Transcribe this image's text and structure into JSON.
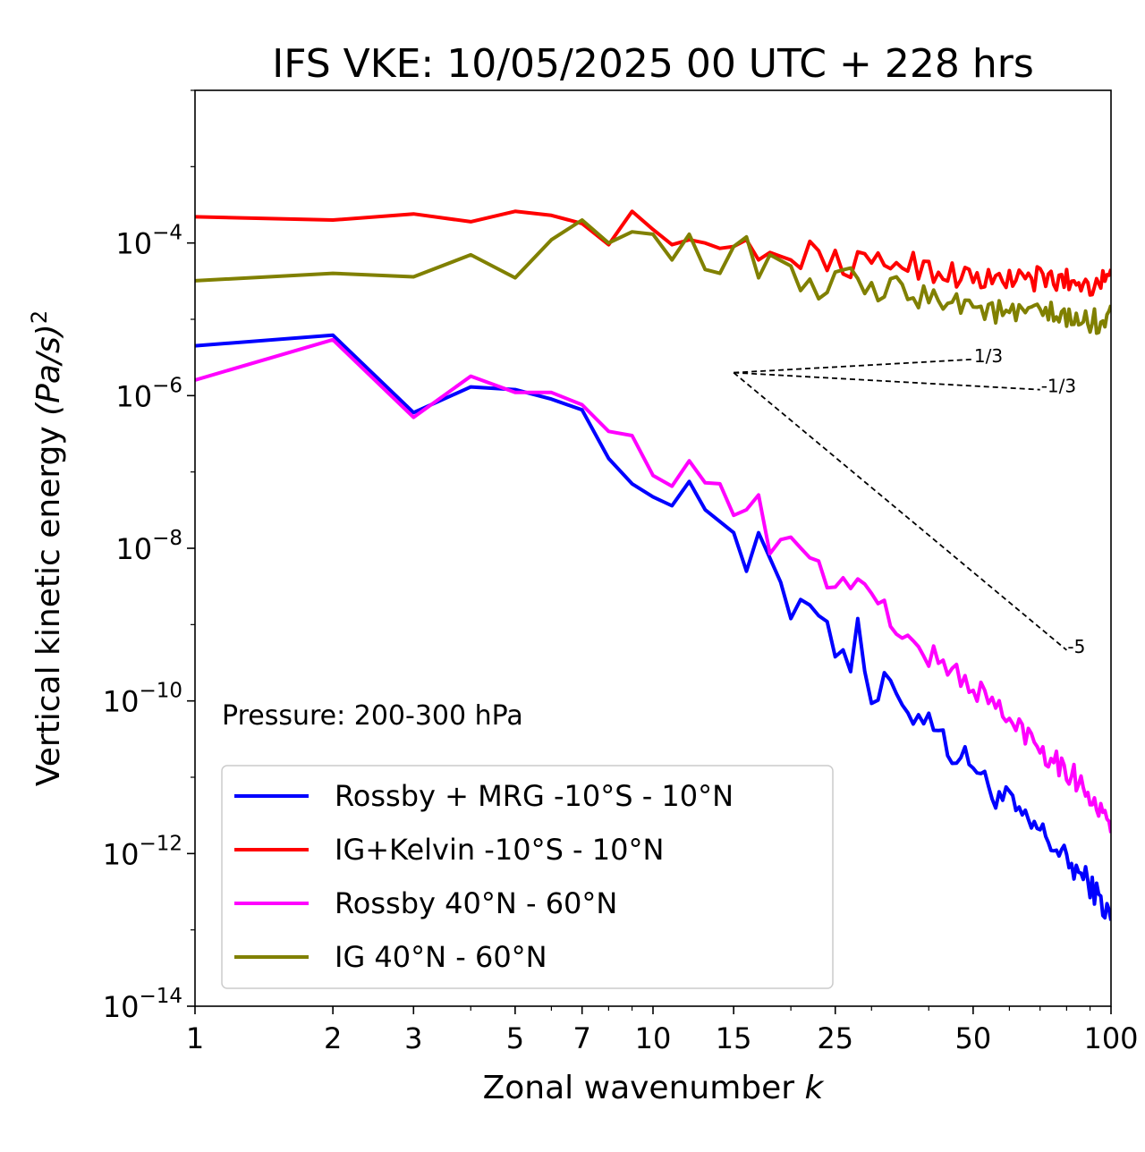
{
  "chart_data": {
    "type": "line",
    "title": "IFS VKE: 10/05/2025 00 UTC + 228 hrs",
    "xlabel": "Zonal wavenumber",
    "xlabel_var": "k",
    "ylabel": "Vertical kinetic energy",
    "ylabel_units": "(Pa/s)",
    "ylabel_exp": "2",
    "annotation": "Pressure: 200-300 hPa",
    "xscale": "log",
    "yscale": "log",
    "xlim": [
      1,
      100
    ],
    "ylim": [
      1e-14,
      0.01
    ],
    "x_ticks": [
      1,
      2,
      3,
      5,
      7,
      10,
      15,
      25,
      50,
      100
    ],
    "y_tick_base": "10",
    "y_ticks": [
      {
        "value": 0.0001,
        "exp": "−4"
      },
      {
        "value": 1e-06,
        "exp": "−6"
      },
      {
        "value": 1e-08,
        "exp": "−8"
      },
      {
        "value": 1e-10,
        "exp": "−10"
      },
      {
        "value": 1e-12,
        "exp": "−12"
      },
      {
        "value": 1e-14,
        "exp": "−14"
      }
    ],
    "legend_position": "lower-left",
    "reference_slopes": [
      {
        "label": "1/3",
        "slope": 0.3333,
        "x_start": 15,
        "x_end": 50,
        "y_start": 2e-06
      },
      {
        "label": "-1/3",
        "slope": -0.3333,
        "x_start": 15,
        "x_end": 70,
        "y_start": 2e-06
      },
      {
        "label": "-5",
        "slope": -5,
        "x_start": 15,
        "x_end": 80,
        "y_start": 2e-06
      }
    ],
    "series": [
      {
        "name": "Rossby + MRG -10°S - 10°N",
        "color": "#0000ff",
        "anchors": [
          [
            1,
            4.5e-06
          ],
          [
            2,
            6.2e-06
          ],
          [
            3,
            6e-07
          ],
          [
            4,
            1.3e-06
          ],
          [
            5,
            1.2e-06
          ],
          [
            6,
            9e-07
          ],
          [
            7,
            6.5e-07
          ],
          [
            8,
            1.5e-07
          ],
          [
            9,
            7e-08
          ],
          [
            10,
            4.7e-08
          ],
          [
            11,
            3.6e-08
          ],
          [
            12,
            7.5e-08
          ],
          [
            13,
            3.2e-08
          ],
          [
            15,
            1.6e-08
          ],
          [
            16,
            5e-09
          ],
          [
            17,
            1.6e-08
          ],
          [
            19,
            3.6e-09
          ],
          [
            20,
            1.2e-09
          ],
          [
            21,
            3.2e-09
          ],
          [
            23,
            1.4e-09
          ],
          [
            25,
            4e-10
          ],
          [
            26,
            6e-10
          ],
          [
            27,
            3.5e-10
          ],
          [
            28,
            1e-09
          ],
          [
            29,
            3e-10
          ],
          [
            30,
            1e-10
          ],
          [
            33,
            2e-10
          ],
          [
            35,
            6e-11
          ],
          [
            40,
            7e-11
          ],
          [
            45,
            2e-11
          ],
          [
            50,
            1.6e-11
          ],
          [
            55,
            6e-12
          ],
          [
            60,
            5e-12
          ],
          [
            65,
            2.5e-12
          ],
          [
            70,
            2e-12
          ],
          [
            80,
            8e-13
          ],
          [
            90,
            4e-13
          ],
          [
            100,
            1.4e-13
          ]
        ]
      },
      {
        "name": "IG+Kelvin -10°S - 10°N",
        "color": "#ff0000",
        "anchors": [
          [
            1,
            0.00022
          ],
          [
            2,
            0.0002
          ],
          [
            3,
            0.00024
          ],
          [
            4,
            0.00019
          ],
          [
            5,
            0.00026
          ],
          [
            6,
            0.00023
          ],
          [
            7,
            0.00018
          ],
          [
            8,
            9.5e-05
          ],
          [
            9,
            0.00026
          ],
          [
            10,
            0.00015
          ],
          [
            11,
            9.5e-05
          ],
          [
            12,
            0.00011
          ],
          [
            13,
            0.0001
          ],
          [
            14,
            8.5e-05
          ],
          [
            15,
            9e-05
          ],
          [
            16,
            0.00011
          ],
          [
            17,
            6e-05
          ],
          [
            18,
            7.5e-05
          ],
          [
            20,
            6e-05
          ],
          [
            22,
            8e-05
          ],
          [
            25,
            5.5e-05
          ],
          [
            30,
            5e-05
          ],
          [
            35,
            6e-05
          ],
          [
            40,
            4.5e-05
          ],
          [
            45,
            4e-05
          ],
          [
            50,
            3.5e-05
          ],
          [
            55,
            3e-05
          ],
          [
            60,
            3.5e-05
          ],
          [
            70,
            3.3e-05
          ],
          [
            80,
            3.2e-05
          ],
          [
            90,
            3e-05
          ],
          [
            100,
            3.2e-05
          ]
        ]
      },
      {
        "name": "Rossby 40°N - 60°N",
        "color": "#ff00ff",
        "anchors": [
          [
            1,
            1.6e-06
          ],
          [
            2,
            5.4e-06
          ],
          [
            3,
            5.2e-07
          ],
          [
            4,
            1.8e-06
          ],
          [
            5,
            1.1e-06
          ],
          [
            6,
            1.1e-06
          ],
          [
            7,
            7.6e-07
          ],
          [
            8,
            3.4e-07
          ],
          [
            9,
            3e-07
          ],
          [
            10,
            9e-08
          ],
          [
            11,
            6.5e-08
          ],
          [
            12,
            1.4e-07
          ],
          [
            13,
            7.2e-08
          ],
          [
            14,
            7e-08
          ],
          [
            15,
            2.7e-08
          ],
          [
            16,
            3.2e-08
          ],
          [
            17,
            5e-08
          ],
          [
            18,
            8.5e-09
          ],
          [
            19,
            1.3e-08
          ],
          [
            21,
            1.5e-08
          ],
          [
            23,
            5e-09
          ],
          [
            25,
            3.2e-09
          ],
          [
            26,
            6e-09
          ],
          [
            27,
            2e-09
          ],
          [
            28,
            5e-09
          ],
          [
            30,
            2e-09
          ],
          [
            33,
            1.3e-09
          ],
          [
            35,
            7e-10
          ],
          [
            40,
            4e-10
          ],
          [
            45,
            2.5e-10
          ],
          [
            50,
            1.5e-10
          ],
          [
            55,
            1e-10
          ],
          [
            60,
            5e-11
          ],
          [
            65,
            4e-11
          ],
          [
            70,
            2.5e-11
          ],
          [
            80,
            1.3e-11
          ],
          [
            90,
            6e-12
          ],
          [
            100,
            2e-12
          ]
        ]
      },
      {
        "name": "IG 40°N - 60°N",
        "color": "#808000",
        "anchors": [
          [
            1,
            3.2e-05
          ],
          [
            2,
            4e-05
          ],
          [
            3,
            3.6e-05
          ],
          [
            4,
            7e-05
          ],
          [
            5,
            3.5e-05
          ],
          [
            6,
            0.00011
          ],
          [
            7,
            0.0002
          ],
          [
            8,
            0.0001
          ],
          [
            9,
            0.00014
          ],
          [
            10,
            0.00013
          ],
          [
            11,
            6e-05
          ],
          [
            12,
            0.00013
          ],
          [
            13,
            4.5e-05
          ],
          [
            14,
            4e-05
          ],
          [
            15,
            9e-05
          ],
          [
            16,
            0.00012
          ],
          [
            17,
            3.5e-05
          ],
          [
            18,
            7e-05
          ],
          [
            20,
            5e-05
          ],
          [
            22,
            2.5e-05
          ],
          [
            25,
            2.8e-05
          ],
          [
            28,
            3.5e-05
          ],
          [
            30,
            2e-05
          ],
          [
            35,
            2.5e-05
          ],
          [
            40,
            1.8e-05
          ],
          [
            45,
            2e-05
          ],
          [
            50,
            1.5e-05
          ],
          [
            55,
            1.3e-05
          ],
          [
            60,
            1.1e-05
          ],
          [
            70,
            1.2e-05
          ],
          [
            80,
            1e-05
          ],
          [
            90,
            9e-06
          ],
          [
            100,
            1.1e-05
          ]
        ]
      }
    ]
  }
}
